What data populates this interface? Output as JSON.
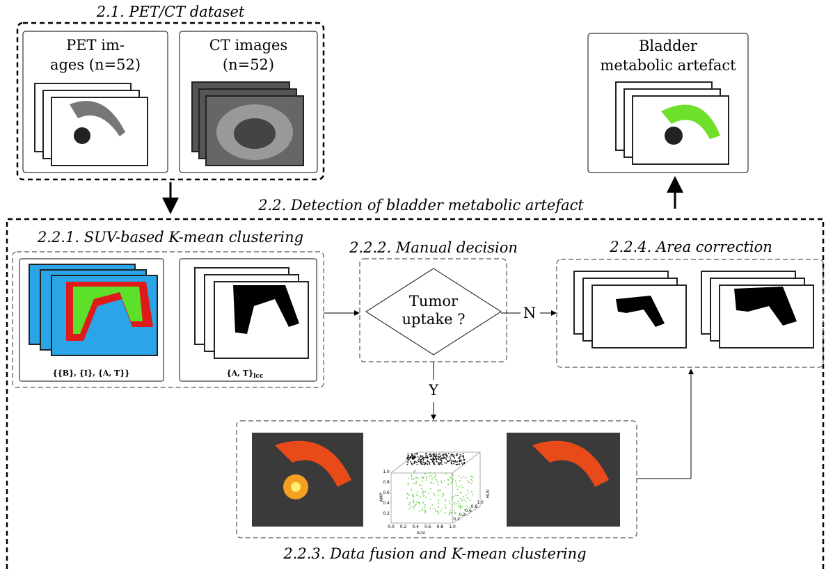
{
  "dataset": {
    "title": "2.1. PET/CT dataset",
    "pet_label": [
      "PET im-",
      "ages (n=52)"
    ],
    "ct_label": [
      "CT images",
      "(n=52)"
    ]
  },
  "output": {
    "label": [
      "Bladder",
      "metabolic artefact"
    ]
  },
  "detection": {
    "title": "2.2. Detection of bladder metabolic artefact",
    "clustering": {
      "title": "2.2.1. SUV-based K-mean clustering",
      "clusters_label": "{{B}, {I}, {A, T}}",
      "lcc_label": "{A, T}",
      "lcc_subscript": "lcc"
    },
    "decision": {
      "title": "2.2.2. Manual decision",
      "question": [
        "Tumor",
        "uptake ?"
      ],
      "no": "N",
      "yes": "Y"
    },
    "correction": {
      "title": "2.2.4. Area correction"
    },
    "fusion": {
      "title": "2.2.3. Data fusion and K-mean clustering",
      "scatter": {
        "x_label": "SUV",
        "y_label": "AMP",
        "z_label": "HUV",
        "x_ticks": [
          "0.0",
          "0.2",
          "0.4",
          "0.6",
          "0.8",
          "1.0"
        ],
        "y_ticks": [
          "0.2",
          "0.4",
          "0.6",
          "0.8",
          "1.0"
        ],
        "z_ticks": [
          "0.2",
          "0.4",
          "0.6",
          "0.8",
          "1.0"
        ]
      }
    }
  }
}
